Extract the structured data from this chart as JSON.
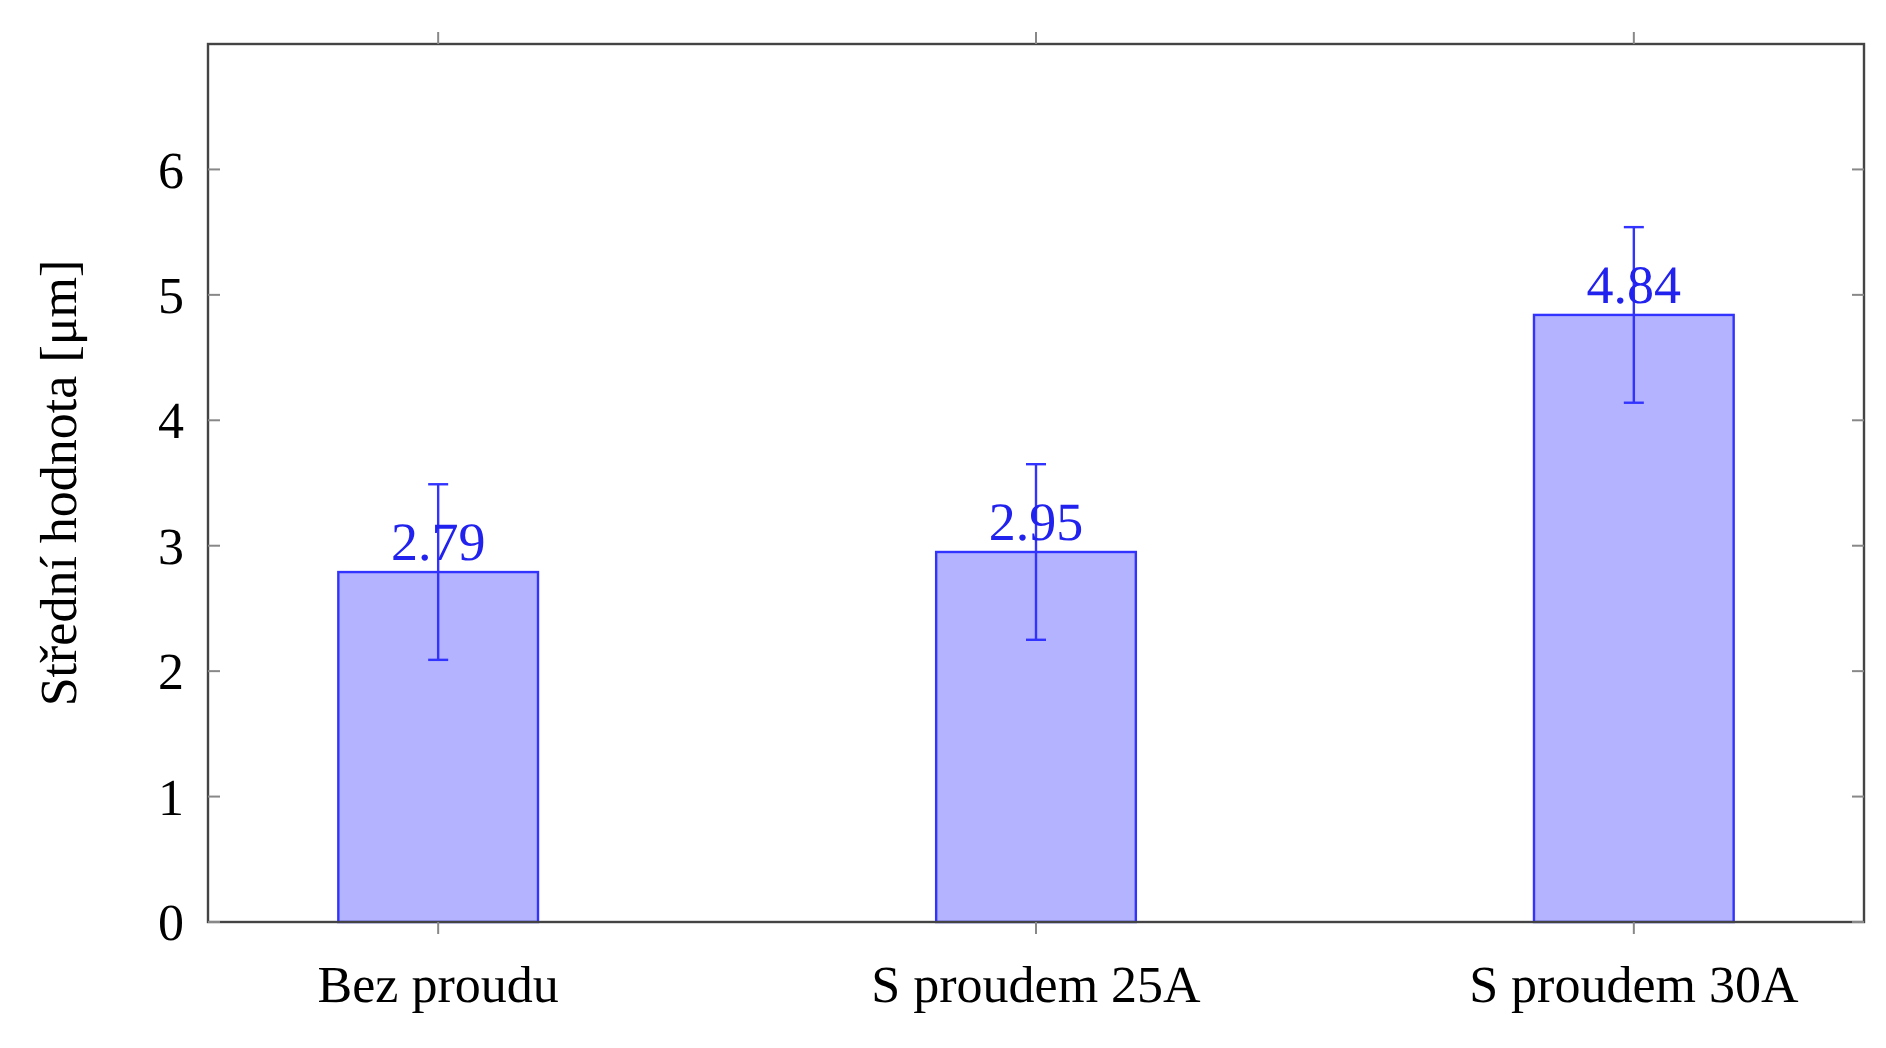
{
  "chart_data": {
    "type": "bar",
    "ylabel": "Střední hodnota [μm]",
    "categories": [
      "Bez proudu",
      "S proudem 25A",
      "S proudem 30A"
    ],
    "values": [
      2.79,
      2.95,
      4.84
    ],
    "errors": [
      0.7,
      0.7,
      0.7
    ],
    "color": "#b3b3ff",
    "data_labels": true,
    "ylim": [
      0,
      7
    ],
    "yticks": [
      0,
      1,
      2,
      3,
      4,
      5,
      6
    ],
    "grid": false
  }
}
